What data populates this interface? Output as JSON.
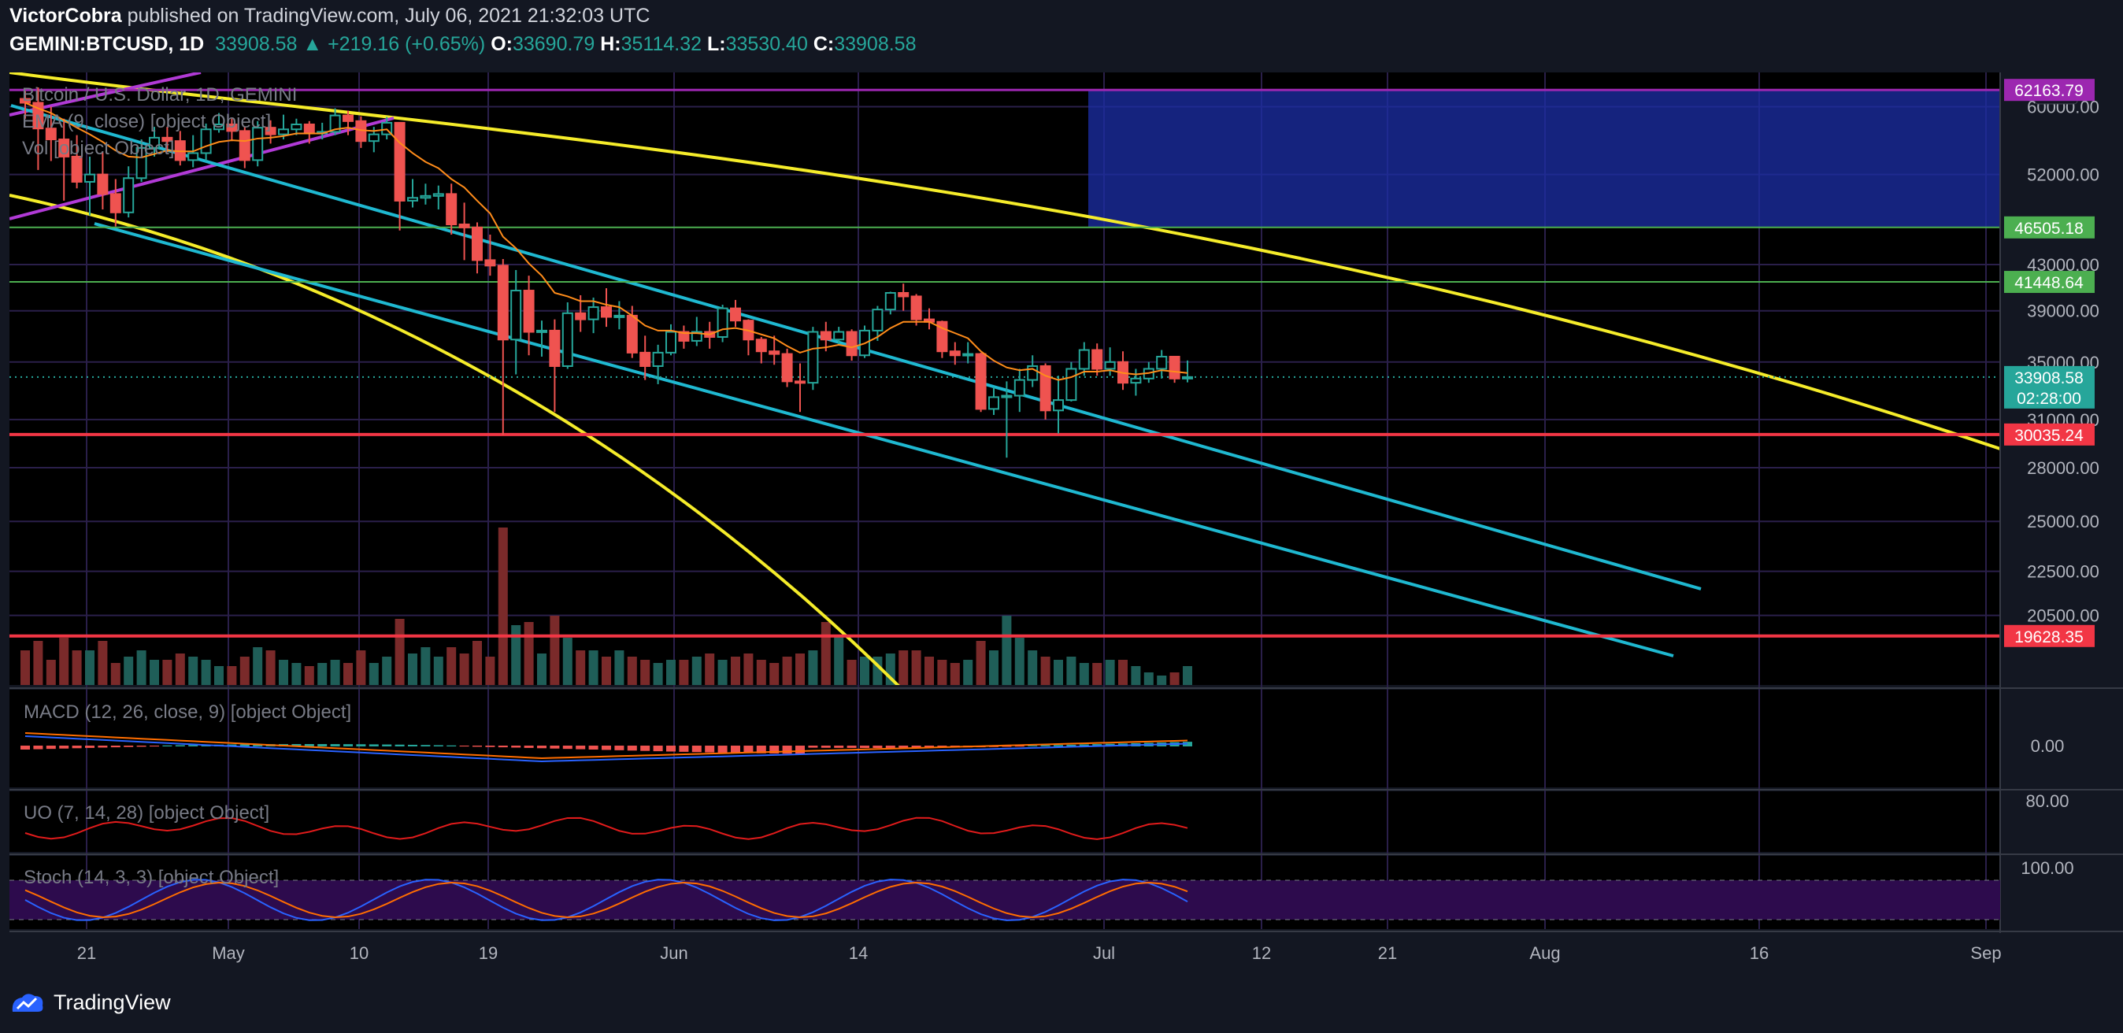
{
  "header": {
    "author": "VictorCobra",
    "published_text": "published on TradingView.com, July 06, 2021 21:32:03 UTC",
    "symbol": "GEMINI:BTCUSD, 1D",
    "last": "33908.58",
    "change": "+219.16 (+0.65%)",
    "o_label": "O:",
    "o": "33690.79",
    "h_label": "H:",
    "h": "35114.32",
    "l_label": "L:",
    "l": "33530.40",
    "c_label": "C:",
    "c": "33908.58"
  },
  "brand": {
    "name": "TradingView"
  },
  "chart_data": {
    "type": "candlestick",
    "title": "Bitcoin / U.S. Dollar, 1D, GEMINI",
    "currency": "USD",
    "legend": [
      "EMA (9, close) [object Object]",
      "Vol [object Object]"
    ],
    "y_axis": {
      "scale": "log",
      "ylim": [
        17700,
        64500
      ],
      "ticks": [
        "60000.00",
        "52000.00",
        "43000.00",
        "39000.00",
        "35000.00",
        "31000.00",
        "28000.00",
        "25000.00",
        "22500.00",
        "20500.00"
      ]
    },
    "x_axis": {
      "ticks": [
        "21",
        "May",
        "10",
        "19",
        "Jun",
        "14",
        "Jul",
        "12",
        "21",
        "Aug",
        "16",
        "Sep"
      ]
    },
    "price_labels": [
      {
        "text": "62163.79",
        "value": 62163.79,
        "color": "#9c27b0"
      },
      {
        "text": "46505.18",
        "value": 46505.18,
        "color": "#4caf50"
      },
      {
        "text": "41448.64",
        "value": 41448.64,
        "color": "#4caf50"
      },
      {
        "text": "33908.58",
        "value": 33908.58,
        "color": "#26a69a"
      },
      {
        "text": "02:28:00",
        "value": 33908.58,
        "color": "#26a69a"
      },
      {
        "text": "30035.24",
        "value": 30035.24,
        "color": "#f23645"
      },
      {
        "text": "19628.35",
        "value": 19628.35,
        "color": "#f23645"
      }
    ],
    "candles": [
      [
        61000,
        60500,
        62000,
        58500
      ],
      [
        60500,
        57300,
        62500,
        52500
      ],
      [
        57300,
        56000,
        60000,
        53500
      ],
      [
        56000,
        54000,
        58500,
        49200
      ],
      [
        54000,
        51200,
        56500,
        50500
      ],
      [
        51200,
        52000,
        54000,
        47700
      ],
      [
        52000,
        49900,
        54500,
        48300
      ],
      [
        49900,
        48000,
        51500,
        46600
      ],
      [
        48000,
        51600,
        52900,
        47500
      ],
      [
        51600,
        55000,
        56000,
        51200
      ],
      [
        55000,
        56200,
        57500,
        54000
      ],
      [
        56200,
        55800,
        57500,
        54500
      ],
      [
        55800,
        53600,
        57000,
        53000
      ],
      [
        53600,
        54400,
        56500,
        52800
      ],
      [
        54400,
        57200,
        57900,
        53500
      ],
      [
        57200,
        57800,
        59200,
        56800
      ],
      [
        57800,
        57000,
        58500,
        55800
      ],
      [
        57000,
        53600,
        57500,
        52700
      ],
      [
        53600,
        57400,
        58200,
        52900
      ],
      [
        57400,
        56600,
        58300,
        55500
      ],
      [
        56600,
        57200,
        59000,
        56000
      ],
      [
        57200,
        57800,
        58500,
        56500
      ],
      [
        57800,
        56700,
        58200,
        55500
      ],
      [
        56700,
        56900,
        58000,
        56000
      ],
      [
        56900,
        58900,
        59800,
        56500
      ],
      [
        58900,
        58200,
        59500,
        56500
      ],
      [
        58200,
        55800,
        58800,
        55000
      ],
      [
        55800,
        56600,
        57500,
        54500
      ],
      [
        56600,
        58000,
        58700,
        56000
      ],
      [
        58000,
        49200,
        58000,
        46200
      ],
      [
        49200,
        49500,
        51500,
        48500
      ],
      [
        49500,
        49700,
        51000,
        48800
      ],
      [
        49700,
        49900,
        50800,
        48300
      ],
      [
        49900,
        46800,
        51000,
        45800
      ],
      [
        46800,
        46500,
        49000,
        43400
      ],
      [
        46500,
        43400,
        47000,
        42200
      ],
      [
        43400,
        42900,
        45800,
        42000
      ],
      [
        42900,
        36700,
        43500,
        30000
      ],
      [
        36700,
        40700,
        42500,
        34100
      ],
      [
        40700,
        37300,
        42000,
        35500
      ],
      [
        37300,
        37400,
        38200,
        35400
      ],
      [
        37400,
        34700,
        38300,
        31500
      ],
      [
        34700,
        38800,
        39700,
        34500
      ],
      [
        38800,
        38300,
        40300,
        37300
      ],
      [
        38300,
        39300,
        40100,
        37200
      ],
      [
        39300,
        38500,
        40900,
        37700
      ],
      [
        38500,
        38600,
        39800,
        37500
      ],
      [
        38600,
        35700,
        39400,
        35300
      ],
      [
        35700,
        34700,
        37000,
        33700
      ],
      [
        34700,
        35700,
        36300,
        33400
      ],
      [
        35700,
        37300,
        37900,
        35500
      ],
      [
        37300,
        36600,
        37800,
        36000
      ],
      [
        36600,
        37300,
        38500,
        36200
      ],
      [
        37300,
        36900,
        38100,
        36000
      ],
      [
        36900,
        39200,
        39500,
        36500
      ],
      [
        39200,
        38200,
        39900,
        37700
      ],
      [
        38200,
        36700,
        38300,
        35500
      ],
      [
        36700,
        35800,
        36900,
        34900
      ],
      [
        35800,
        35600,
        37000,
        34800
      ],
      [
        35600,
        33600,
        36000,
        33200
      ],
      [
        33600,
        33500,
        34900,
        31500
      ],
      [
        33500,
        37300,
        37700,
        33000
      ],
      [
        37300,
        36700,
        38100,
        35800
      ],
      [
        36700,
        37300,
        37700,
        36300
      ],
      [
        37300,
        35500,
        37500,
        35100
      ],
      [
        35500,
        37400,
        37800,
        35300
      ],
      [
        37400,
        39100,
        39400,
        36600
      ],
      [
        39100,
        40500,
        40600,
        38700
      ],
      [
        40500,
        40200,
        41300,
        39000
      ],
      [
        40200,
        38300,
        40400,
        37800
      ],
      [
        38300,
        38100,
        39200,
        37500
      ],
      [
        38100,
        35800,
        38200,
        35300
      ],
      [
        35800,
        35500,
        36500,
        34800
      ],
      [
        35500,
        35600,
        36500,
        34900
      ],
      [
        35600,
        31700,
        35700,
        31500
      ],
      [
        31700,
        32500,
        33200,
        31300
      ],
      [
        32500,
        32600,
        33600,
        28600
      ],
      [
        32600,
        33700,
        34500,
        31500
      ],
      [
        33700,
        34700,
        35500,
        33200
      ],
      [
        34700,
        31600,
        34900,
        31000
      ],
      [
        31600,
        32300,
        34000,
        30100
      ],
      [
        32300,
        34500,
        35000,
        32200
      ],
      [
        34500,
        35900,
        36500,
        34000
      ],
      [
        35900,
        34500,
        36400,
        34000
      ],
      [
        34500,
        35000,
        36100,
        34000
      ],
      [
        35000,
        33500,
        35800,
        33000
      ],
      [
        33500,
        33800,
        34500,
        32600
      ],
      [
        33800,
        34500,
        35000,
        33500
      ],
      [
        34500,
        35400,
        35900,
        33800
      ],
      [
        35400,
        33800,
        35400,
        33500
      ],
      [
        33800,
        33909,
        35114,
        33530
      ]
    ],
    "ema9": [
      60500,
      59800,
      59200,
      58300,
      57400,
      56600,
      55700,
      54700,
      54000,
      53900,
      54300,
      54700,
      54600,
      54600,
      55200,
      55700,
      55900,
      55800,
      56100,
      56200,
      56400,
      56700,
      56700,
      56700,
      57200,
      57400,
      57100,
      57000,
      57200,
      55600,
      54400,
      53400,
      52700,
      51500,
      50600,
      49200,
      47900,
      45600,
      44500,
      43100,
      42000,
      40500,
      40200,
      39800,
      39800,
      39500,
      39300,
      38600,
      37800,
      37400,
      37400,
      37200,
      37200,
      37100,
      37500,
      37600,
      37400,
      37100,
      36800,
      36200,
      35700,
      36000,
      36100,
      36300,
      36100,
      36400,
      36900,
      37600,
      38100,
      38100,
      38100,
      37600,
      37200,
      36800,
      35800,
      35100,
      34600,
      34400,
      34500,
      34000,
      33700,
      33900,
      34300,
      34300,
      34400,
      34200,
      34100,
      34200,
      34400,
      34300,
      34200
    ],
    "volume": [
      22,
      28,
      16,
      30,
      22,
      22,
      28,
      14,
      18,
      22,
      16,
      16,
      20,
      18,
      16,
      12,
      12,
      18,
      24,
      22,
      16,
      14,
      12,
      14,
      16,
      14,
      22,
      14,
      18,
      42,
      20,
      24,
      18,
      24,
      20,
      28,
      18,
      100,
      38,
      40,
      20,
      44,
      30,
      22,
      22,
      18,
      22,
      18,
      16,
      14,
      16,
      16,
      18,
      20,
      16,
      18,
      20,
      16,
      14,
      18,
      20,
      22,
      40,
      32,
      16,
      18,
      18,
      20,
      22,
      22,
      18,
      16,
      14,
      16,
      28,
      22,
      44,
      30,
      22,
      18,
      16,
      18,
      14,
      14,
      16,
      16,
      12,
      8,
      6,
      8,
      12
    ],
    "macd": {
      "label": "MACD (12, 26, close, 9) [object Object]",
      "axis": [
        "0.00"
      ]
    },
    "uo": {
      "label": "UO (7, 14, 28) [object Object]",
      "axis": [
        "80.00"
      ]
    },
    "stoch": {
      "label": "Stoch (14, 3, 3) [object Object]",
      "axis": [
        "100.00"
      ]
    }
  },
  "colors": {
    "bg": "#131722",
    "up": "#26a69a",
    "down": "#ef5350",
    "grid": "#2a1f4a",
    "yellow": "#f5ec2a",
    "cyan": "#1fb8d0",
    "magenta": "#b13ad6",
    "zone": "#1c2fa8"
  }
}
